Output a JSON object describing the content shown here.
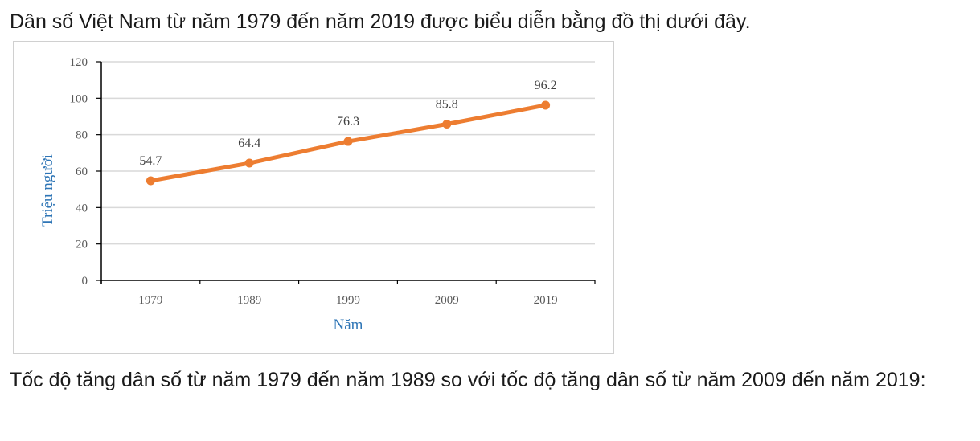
{
  "intro_text": "Dân số Việt Nam từ năm 1979 đến năm 2019 được biểu diễn bằng đồ thị dưới đây.",
  "question_text": "Tốc độ tăng dân số từ năm 1979 đến năm 1989 so với tốc độ tăng dân số từ năm 2009 đến năm 2019:",
  "colors": {
    "line": "#ed7d31",
    "axis_title": "#2e75b6",
    "grid": "#d9d9d9"
  },
  "chart_data": {
    "type": "line",
    "categories": [
      "1979",
      "1989",
      "1999",
      "2009",
      "2019"
    ],
    "series": [
      {
        "values": [
          54.7,
          64.4,
          76.3,
          85.8,
          96.2
        ]
      }
    ],
    "data_labels": [
      "54.7",
      "64.4",
      "76.3",
      "85.8",
      "96.2"
    ],
    "title": "",
    "xlabel": "Năm",
    "ylabel": "Triệu người",
    "ylim": [
      0,
      120
    ],
    "yticks": [
      0,
      20,
      40,
      60,
      80,
      100,
      120
    ],
    "grid": true,
    "legend": "none"
  }
}
